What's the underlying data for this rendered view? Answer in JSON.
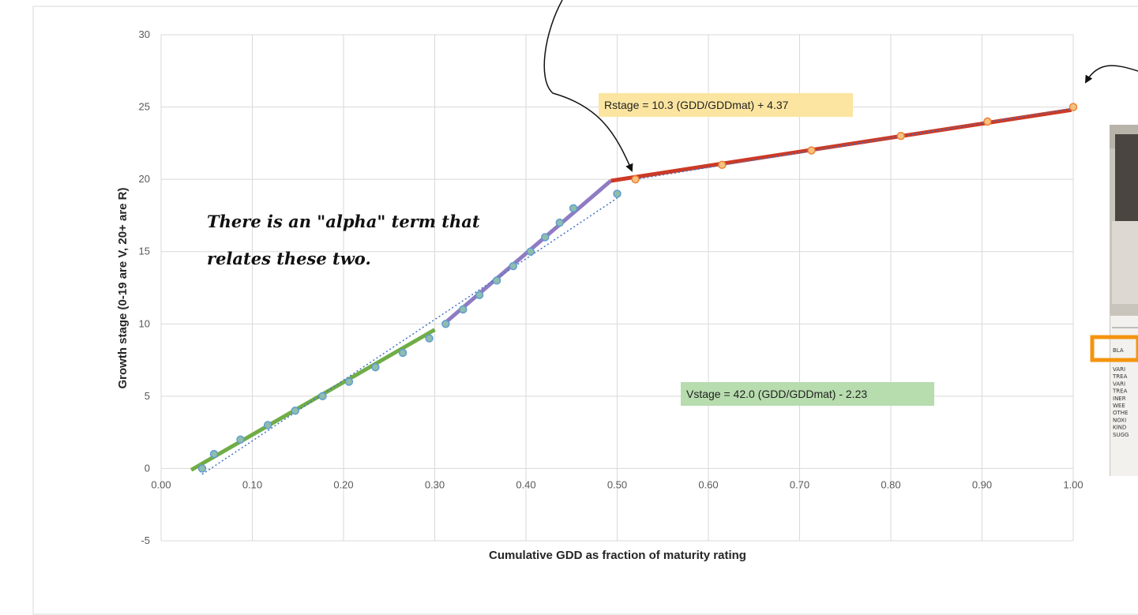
{
  "chart_data": {
    "type": "scatter",
    "xlabel": "Cumulative GDD as fraction of maturity rating",
    "ylabel": "Growth stage (0-19 are V, 20+ are R)",
    "xlim": [
      0,
      1
    ],
    "ylim": [
      -5,
      30
    ],
    "x_ticks": [
      "0.00",
      "0.10",
      "0.20",
      "0.30",
      "0.40",
      "0.50",
      "0.60",
      "0.70",
      "0.80",
      "0.90",
      "1.00"
    ],
    "y_ticks": [
      "-5",
      "0",
      "5",
      "10",
      "15",
      "20",
      "25",
      "30"
    ],
    "grid": true,
    "series": [
      {
        "marker_color": "#5b9bd5",
        "marker_fill": "#8fbcab",
        "points": [
          [
            0.045,
            0
          ],
          [
            0.058,
            1
          ],
          [
            0.087,
            2
          ],
          [
            0.117,
            3
          ],
          [
            0.147,
            4
          ],
          [
            0.177,
            5
          ],
          [
            0.206,
            6
          ],
          [
            0.235,
            7
          ],
          [
            0.265,
            8
          ],
          [
            0.294,
            9
          ],
          [
            0.312,
            10
          ],
          [
            0.331,
            11
          ],
          [
            0.349,
            12
          ],
          [
            0.368,
            13
          ],
          [
            0.386,
            14
          ],
          [
            0.405,
            15
          ],
          [
            0.421,
            16
          ],
          [
            0.437,
            17
          ],
          [
            0.452,
            18
          ],
          [
            0.5,
            19
          ]
        ]
      },
      {
        "marker_color": "#ed7d31",
        "marker_fill": "#f4c27f",
        "points": [
          [
            0.52,
            20
          ],
          [
            0.615,
            21
          ],
          [
            0.713,
            22
          ],
          [
            0.811,
            23
          ],
          [
            0.906,
            24
          ],
          [
            1.0,
            25
          ]
        ]
      }
    ],
    "trendlines": [
      {
        "color": "#70ad47",
        "width": 5,
        "from": [
          0.033,
          -0.1
        ],
        "to": [
          0.3,
          9.6
        ]
      },
      {
        "color": "#8e7cc3",
        "width": 5,
        "from": [
          0.31,
          10
        ],
        "to": [
          0.493,
          19.9
        ]
      },
      {
        "color": "#cc3a25",
        "width": 5,
        "from": [
          0.493,
          19.9
        ],
        "to": [
          0.998,
          24.8
        ]
      },
      {
        "color": "#4472c4",
        "width": 1.5,
        "dashed": true,
        "from": [
          0.045,
          -0.4
        ],
        "to": [
          0.5,
          18.7
        ]
      },
      {
        "color": "#4472c4",
        "width": 1.5,
        "dashed": true,
        "from": [
          0.52,
          20.0
        ],
        "to": [
          1.0,
          24.9
        ]
      }
    ],
    "annotations": {
      "rstage_equation": "Rstage = 10.3 (GDD/GDDmat) + 4.37",
      "vstage_equation": "Vstage = 42.0 (GDD/GDDmat) - 2.23",
      "note_line1": "There is an \"alpha\" term that",
      "note_line2": "relates these two."
    }
  },
  "colors": {
    "grid": "#d9d9d9",
    "plot_border": "#d9d9d9",
    "highlight_box": "#f5940f"
  },
  "photo_inset": {
    "lines": [
      "BLA",
      "VARI",
      "TREA",
      "VARI",
      "TREA",
      "INER",
      "WEE",
      "OTHE",
      "NOXI",
      "KIND",
      "SUGG"
    ]
  }
}
